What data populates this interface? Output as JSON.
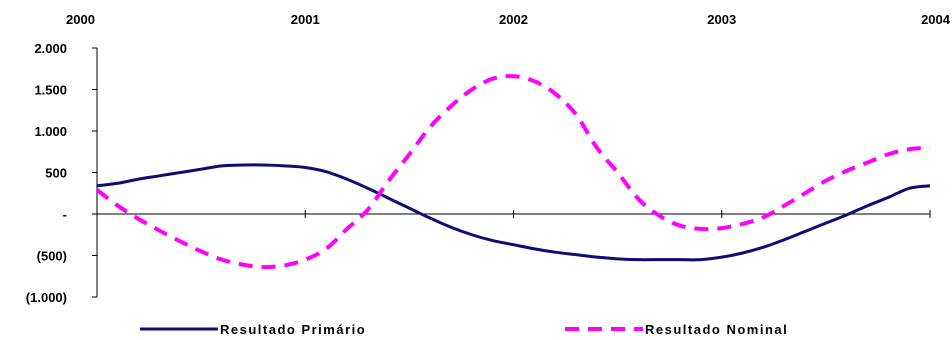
{
  "chart_data": {
    "type": "line",
    "title": "",
    "xlabel": "",
    "ylabel": "",
    "x_ticks": [
      "2000",
      "2001",
      "2002",
      "2003",
      "2004"
    ],
    "x_range": [
      2000,
      2004
    ],
    "y_ticks": [
      2000,
      1500,
      1000,
      500,
      0,
      -500,
      -1000
    ],
    "y_tick_labels": [
      "2.000",
      "1.500",
      "1.000",
      "500",
      "-",
      "(500)",
      "(1.000)"
    ],
    "ylim": [
      -1000,
      2000
    ],
    "grid": false,
    "legend_position": "bottom",
    "series": [
      {
        "name": "Resultado Primário",
        "style": "solid",
        "color": "#0d0d73",
        "x": [
          2000.0,
          2000.1,
          2000.2,
          2000.3,
          2000.4,
          2000.5,
          2000.6,
          2000.7,
          2000.8,
          2000.9,
          2001.0,
          2001.1,
          2001.2,
          2001.3,
          2001.4,
          2001.5,
          2001.6,
          2001.7,
          2001.8,
          2001.9,
          2002.0,
          2002.1,
          2002.2,
          2002.3,
          2002.4,
          2002.5,
          2002.6,
          2002.7,
          2002.8,
          2002.9,
          2003.0,
          2003.1,
          2003.2,
          2003.3,
          2003.4,
          2003.5,
          2003.6,
          2003.7,
          2003.8,
          2003.9,
          2004.0
        ],
        "values": [
          340,
          370,
          420,
          460,
          500,
          540,
          580,
          590,
          590,
          580,
          560,
          510,
          420,
          310,
          190,
          70,
          -50,
          -160,
          -250,
          -320,
          -370,
          -420,
          -460,
          -490,
          -520,
          -540,
          -550,
          -550,
          -550,
          -550,
          -520,
          -470,
          -400,
          -310,
          -210,
          -110,
          -10,
          100,
          200,
          310,
          340
        ]
      },
      {
        "name": "Resultado Nominal",
        "style": "dashed",
        "color": "#ff00ff",
        "x": [
          2000.0,
          2000.1,
          2000.2,
          2000.3,
          2000.4,
          2000.5,
          2000.6,
          2000.7,
          2000.8,
          2000.9,
          2001.0,
          2001.1,
          2001.2,
          2001.3,
          2001.4,
          2001.5,
          2001.6,
          2001.7,
          2001.8,
          2001.9,
          2002.0,
          2002.1,
          2002.2,
          2002.3,
          2002.4,
          2002.5,
          2002.6,
          2002.7,
          2002.8,
          2002.9,
          2003.0,
          2003.1,
          2003.2,
          2003.3,
          2003.4,
          2003.5,
          2003.6,
          2003.7,
          2003.8,
          2003.9,
          2004.0
        ],
        "values": [
          290,
          100,
          -60,
          -200,
          -330,
          -450,
          -550,
          -610,
          -640,
          -620,
          -550,
          -420,
          -180,
          50,
          400,
          720,
          1050,
          1300,
          1500,
          1630,
          1660,
          1600,
          1450,
          1200,
          800,
          500,
          180,
          -20,
          -140,
          -180,
          -170,
          -120,
          -40,
          100,
          250,
          400,
          520,
          620,
          720,
          780,
          800
        ]
      }
    ]
  }
}
